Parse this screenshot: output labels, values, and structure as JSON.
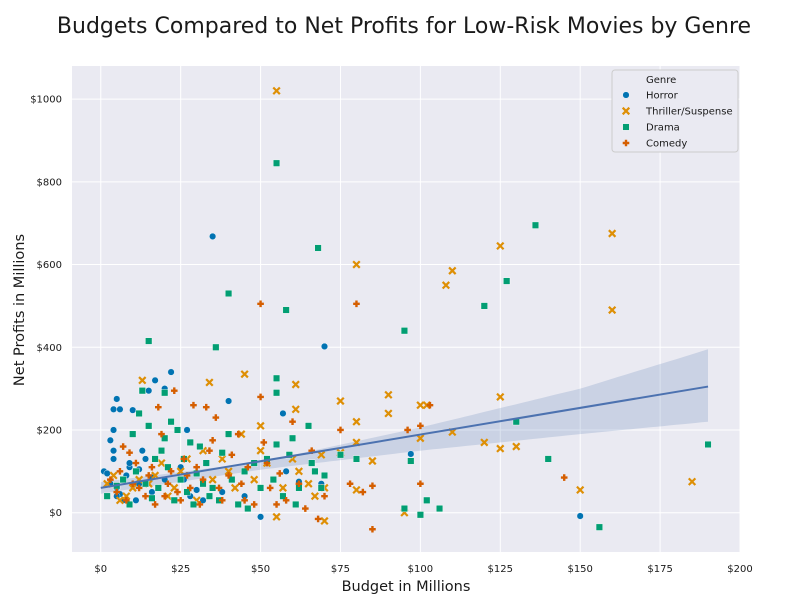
{
  "chart_data": {
    "type": "scatter",
    "title": "Budgets Compared to Net Profits for Low-Risk Movies by Genre",
    "xlabel": "Budget in Millions",
    "ylabel": "Net Profits in Millions",
    "xlim": [
      -9,
      200
    ],
    "ylim": [
      -95,
      1080
    ],
    "x_ticks": [
      0,
      25,
      50,
      75,
      100,
      125,
      150,
      175,
      200
    ],
    "x_tick_labels": [
      "$0",
      "$25",
      "$50",
      "$75",
      "$100",
      "$125",
      "$150",
      "$175",
      "$200"
    ],
    "y_ticks": [
      0,
      200,
      400,
      600,
      800,
      1000
    ],
    "y_tick_labels": [
      "$0",
      "$200",
      "$400",
      "$600",
      "$800",
      "$1000"
    ],
    "grid": true,
    "legend": {
      "title": "Genre",
      "placement": "top-right",
      "entries": [
        {
          "name": "Horror",
          "marker": "circle",
          "color": "#0173b2"
        },
        {
          "name": "Thriller/Suspense",
          "marker": "x",
          "color": "#de8f05"
        },
        {
          "name": "Drama",
          "marker": "square",
          "color": "#029e73"
        },
        {
          "name": "Comedy",
          "marker": "plus",
          "color": "#d55e00"
        }
      ]
    },
    "regression": {
      "x_range": [
        0,
        190
      ],
      "line": [
        [
          0,
          60
        ],
        [
          190,
          305
        ]
      ],
      "ci_lower": [
        [
          0,
          46
        ],
        [
          50,
          104
        ],
        [
          100,
          150
        ],
        [
          150,
          190
        ],
        [
          190,
          220
        ]
      ],
      "ci_upper": [
        [
          0,
          74
        ],
        [
          50,
          123
        ],
        [
          100,
          206
        ],
        [
          150,
          300
        ],
        [
          190,
          395
        ]
      ],
      "color": "#4c72b0"
    },
    "series": [
      {
        "name": "Horror",
        "points": [
          [
            1,
            100
          ],
          [
            2,
            95
          ],
          [
            3,
            70
          ],
          [
            3,
            175
          ],
          [
            4,
            150
          ],
          [
            4,
            130
          ],
          [
            4,
            200
          ],
          [
            5,
            275
          ],
          [
            4,
            250
          ],
          [
            6,
            250
          ],
          [
            5,
            60
          ],
          [
            6,
            45
          ],
          [
            7,
            30
          ],
          [
            8,
            90
          ],
          [
            9,
            110
          ],
          [
            9,
            120
          ],
          [
            10,
            248
          ],
          [
            11,
            30
          ],
          [
            12,
            70
          ],
          [
            12,
            105
          ],
          [
            13,
            150
          ],
          [
            14,
            130
          ],
          [
            15,
            295
          ],
          [
            16,
            85
          ],
          [
            16,
            50
          ],
          [
            17,
            320
          ],
          [
            18,
            60
          ],
          [
            20,
            80
          ],
          [
            20,
            300
          ],
          [
            22,
            340
          ],
          [
            23,
            30
          ],
          [
            25,
            110
          ],
          [
            26,
            80
          ],
          [
            27,
            200
          ],
          [
            28,
            40
          ],
          [
            30,
            55
          ],
          [
            32,
            30
          ],
          [
            35,
            668
          ],
          [
            38,
            50
          ],
          [
            40,
            270
          ],
          [
            45,
            40
          ],
          [
            50,
            -10
          ],
          [
            57,
            240
          ],
          [
            58,
            100
          ],
          [
            62,
            75
          ],
          [
            69,
            70
          ],
          [
            70,
            402
          ],
          [
            97,
            142
          ],
          [
            150,
            -8
          ],
          [
            5,
            40
          ]
        ]
      },
      {
        "name": "Thriller/Suspense",
        "points": [
          [
            2,
            70
          ],
          [
            4,
            90
          ],
          [
            6,
            30
          ],
          [
            8,
            40
          ],
          [
            10,
            60
          ],
          [
            12,
            80
          ],
          [
            13,
            320
          ],
          [
            15,
            70
          ],
          [
            17,
            90
          ],
          [
            19,
            120
          ],
          [
            21,
            40
          ],
          [
            23,
            60
          ],
          [
            25,
            100
          ],
          [
            27,
            130
          ],
          [
            30,
            30
          ],
          [
            32,
            150
          ],
          [
            34,
            315
          ],
          [
            35,
            80
          ],
          [
            38,
            130
          ],
          [
            40,
            100
          ],
          [
            42,
            60
          ],
          [
            44,
            190
          ],
          [
            45,
            335
          ],
          [
            48,
            80
          ],
          [
            50,
            210
          ],
          [
            50,
            150
          ],
          [
            52,
            120
          ],
          [
            55,
            1020
          ],
          [
            55,
            -10
          ],
          [
            57,
            60
          ],
          [
            60,
            130
          ],
          [
            61,
            250
          ],
          [
            61,
            310
          ],
          [
            62,
            100
          ],
          [
            65,
            70
          ],
          [
            67,
            40
          ],
          [
            69,
            140
          ],
          [
            70,
            60
          ],
          [
            70,
            -20
          ],
          [
            75,
            270
          ],
          [
            75,
            145
          ],
          [
            80,
            220
          ],
          [
            80,
            600
          ],
          [
            80,
            170
          ],
          [
            80,
            55
          ],
          [
            85,
            125
          ],
          [
            90,
            285
          ],
          [
            90,
            240
          ],
          [
            95,
            0
          ],
          [
            100,
            180
          ],
          [
            100,
            260
          ],
          [
            102,
            260
          ],
          [
            108,
            550
          ],
          [
            110,
            585
          ],
          [
            110,
            195
          ],
          [
            120,
            170
          ],
          [
            125,
            645
          ],
          [
            125,
            280
          ],
          [
            125,
            155
          ],
          [
            130,
            160
          ],
          [
            150,
            55
          ],
          [
            160,
            675
          ],
          [
            160,
            490
          ],
          [
            185,
            75
          ]
        ]
      },
      {
        "name": "Drama",
        "points": [
          [
            2,
            40
          ],
          [
            5,
            65
          ],
          [
            7,
            80
          ],
          [
            9,
            20
          ],
          [
            10,
            190
          ],
          [
            11,
            100
          ],
          [
            12,
            240
          ],
          [
            13,
            295
          ],
          [
            14,
            70
          ],
          [
            15,
            415
          ],
          [
            15,
            210
          ],
          [
            16,
            35
          ],
          [
            17,
            130
          ],
          [
            18,
            60
          ],
          [
            19,
            150
          ],
          [
            20,
            180
          ],
          [
            20,
            290
          ],
          [
            21,
            110
          ],
          [
            22,
            220
          ],
          [
            23,
            30
          ],
          [
            24,
            200
          ],
          [
            25,
            80
          ],
          [
            26,
            130
          ],
          [
            27,
            50
          ],
          [
            28,
            170
          ],
          [
            29,
            20
          ],
          [
            30,
            95
          ],
          [
            31,
            160
          ],
          [
            32,
            70
          ],
          [
            33,
            120
          ],
          [
            34,
            40
          ],
          [
            35,
            60
          ],
          [
            36,
            400
          ],
          [
            37,
            30
          ],
          [
            38,
            145
          ],
          [
            40,
            530
          ],
          [
            40,
            190
          ],
          [
            41,
            80
          ],
          [
            43,
            20
          ],
          [
            45,
            100
          ],
          [
            46,
            10
          ],
          [
            48,
            120
          ],
          [
            50,
            60
          ],
          [
            52,
            130
          ],
          [
            54,
            80
          ],
          [
            55,
            845
          ],
          [
            55,
            325
          ],
          [
            55,
            290
          ],
          [
            55,
            165
          ],
          [
            57,
            40
          ],
          [
            58,
            490
          ],
          [
            59,
            140
          ],
          [
            60,
            180
          ],
          [
            61,
            20
          ],
          [
            62,
            60
          ],
          [
            65,
            210
          ],
          [
            66,
            120
          ],
          [
            67,
            100
          ],
          [
            68,
            640
          ],
          [
            69,
            60
          ],
          [
            70,
            90
          ],
          [
            75,
            140
          ],
          [
            80,
            130
          ],
          [
            95,
            440
          ],
          [
            95,
            10
          ],
          [
            97,
            125
          ],
          [
            100,
            -5
          ],
          [
            102,
            30
          ],
          [
            106,
            10
          ],
          [
            120,
            500
          ],
          [
            127,
            560
          ],
          [
            130,
            220
          ],
          [
            136,
            695
          ],
          [
            140,
            130
          ],
          [
            156,
            -35
          ],
          [
            190,
            165
          ]
        ]
      },
      {
        "name": "Comedy",
        "points": [
          [
            3,
            80
          ],
          [
            5,
            50
          ],
          [
            6,
            100
          ],
          [
            7,
            160
          ],
          [
            8,
            30
          ],
          [
            9,
            145
          ],
          [
            10,
            70
          ],
          [
            11,
            120
          ],
          [
            12,
            60
          ],
          [
            14,
            40
          ],
          [
            15,
            90
          ],
          [
            16,
            110
          ],
          [
            17,
            20
          ],
          [
            18,
            255
          ],
          [
            19,
            190
          ],
          [
            20,
            40
          ],
          [
            21,
            70
          ],
          [
            22,
            100
          ],
          [
            23,
            295
          ],
          [
            24,
            50
          ],
          [
            25,
            30
          ],
          [
            26,
            130
          ],
          [
            27,
            90
          ],
          [
            28,
            60
          ],
          [
            29,
            260
          ],
          [
            30,
            110
          ],
          [
            31,
            20
          ],
          [
            32,
            80
          ],
          [
            33,
            255
          ],
          [
            34,
            150
          ],
          [
            35,
            175
          ],
          [
            36,
            230
          ],
          [
            37,
            60
          ],
          [
            38,
            30
          ],
          [
            40,
            90
          ],
          [
            41,
            140
          ],
          [
            43,
            190
          ],
          [
            44,
            70
          ],
          [
            45,
            30
          ],
          [
            46,
            110
          ],
          [
            48,
            20
          ],
          [
            50,
            505
          ],
          [
            50,
            280
          ],
          [
            51,
            170
          ],
          [
            52,
            120
          ],
          [
            53,
            60
          ],
          [
            55,
            20
          ],
          [
            56,
            95
          ],
          [
            58,
            30
          ],
          [
            60,
            220
          ],
          [
            62,
            70
          ],
          [
            64,
            10
          ],
          [
            66,
            150
          ],
          [
            68,
            -15
          ],
          [
            70,
            40
          ],
          [
            75,
            200
          ],
          [
            78,
            70
          ],
          [
            80,
            505
          ],
          [
            82,
            50
          ],
          [
            85,
            -40
          ],
          [
            85,
            65
          ],
          [
            96,
            200
          ],
          [
            100,
            70
          ],
          [
            100,
            210
          ],
          [
            103,
            260
          ],
          [
            145,
            85
          ]
        ]
      }
    ]
  }
}
